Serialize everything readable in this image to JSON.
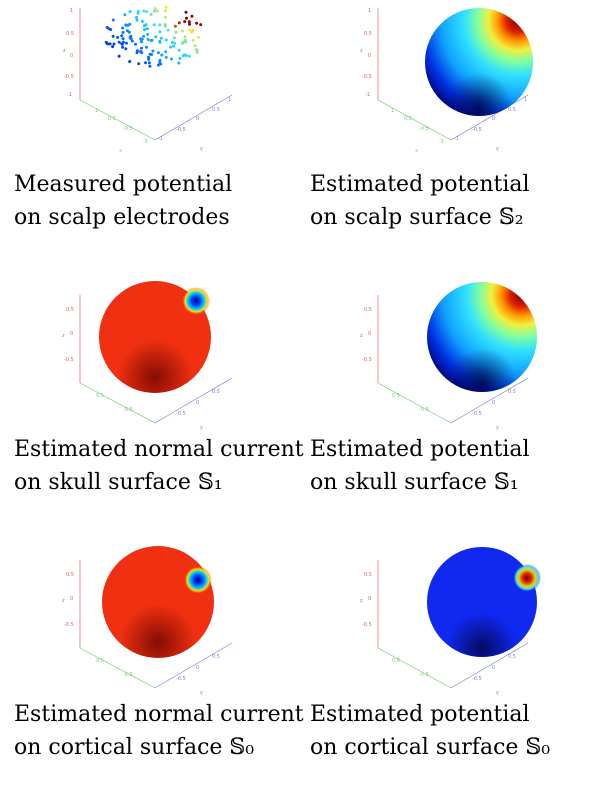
{
  "colors": {
    "z_axis": "#e06060",
    "x_axis": "#6fd06f",
    "y_axis": "#7f7fe0",
    "hot": "#a00000",
    "cold": "#000080"
  },
  "axis_labels": {
    "x": "x",
    "y": "y",
    "z": "z"
  },
  "ticks": {
    "z_full": [
      "1",
      "0.5",
      "0",
      "-0.5",
      "-1"
    ],
    "z_short": [
      "0.5",
      "0",
      "-0.5"
    ],
    "x_ticks": [
      "1",
      "0.5",
      "-0.5",
      "-1"
    ],
    "y_ticks": [
      "-1",
      "-0.5",
      "0",
      "0.5",
      "1"
    ]
  },
  "panels": [
    {
      "id": "measured-scalp-electrodes",
      "kind": "scatter",
      "caption_line1": "Measured potential",
      "caption_line2": "on scalp electrodes"
    },
    {
      "id": "estimated-potential-scalp",
      "kind": "potential-sphere",
      "caption_line1": "Estimated potential",
      "caption_line2": "on scalp surface 𝕊₂"
    },
    {
      "id": "estimated-current-skull",
      "kind": "current-sphere",
      "caption_line1": "Estimated normal current",
      "caption_line2": "on skull surface 𝕊₁"
    },
    {
      "id": "estimated-potential-skull",
      "kind": "potential-sphere",
      "caption_line1": "Estimated potential",
      "caption_line2": "on skull surface 𝕊₁"
    },
    {
      "id": "estimated-current-cortical",
      "kind": "current-sphere",
      "caption_line1": "Estimated normal current",
      "caption_line2": "on cortical surface 𝕊₀"
    },
    {
      "id": "estimated-potential-cortical",
      "kind": "deep-potential-sphere",
      "caption_line1": "Estimated potential",
      "caption_line2": "on cortical surface 𝕊₀"
    }
  ]
}
